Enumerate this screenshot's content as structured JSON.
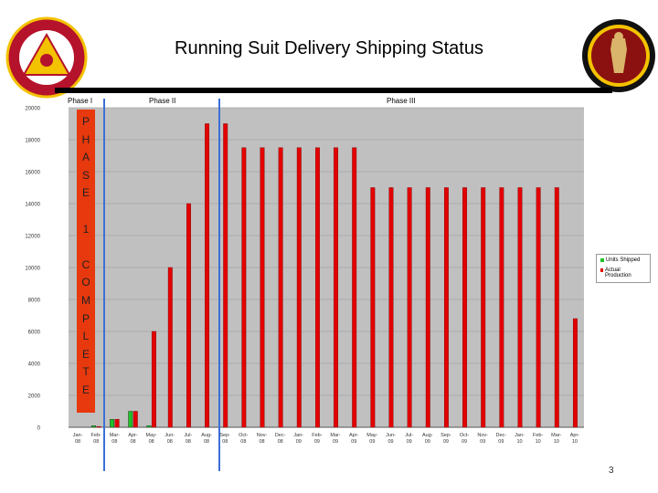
{
  "header": {
    "title": "Running Suit Delivery Shipping Status",
    "page_number": "3"
  },
  "phases": {
    "phase1": "Phase I",
    "phase2": "Phase II",
    "phase3": "Phase III",
    "banner_letters": [
      "P",
      "H",
      "A",
      "S",
      "E",
      "",
      "1",
      "",
      "C",
      "O",
      "M",
      "P",
      "L",
      "E",
      "T",
      "E"
    ]
  },
  "colors": {
    "units_shipped": "#22c12a",
    "actual_production": "#e30000",
    "plot_bg": "#c0c0c0",
    "phase_banner": "#e8380d",
    "phase_divider": "#3b6fd6"
  },
  "chart_data": {
    "type": "bar",
    "title": "",
    "xlabel": "",
    "ylabel": "",
    "ylim": [
      0,
      20000
    ],
    "yticks": [
      0,
      2000,
      4000,
      6000,
      8000,
      10000,
      12000,
      14000,
      16000,
      18000,
      20000
    ],
    "categories": [
      "Jan-08",
      "Feb-08",
      "Mar-08",
      "Apr-08",
      "May-08",
      "Jun-08",
      "Jul-08",
      "Aug-08",
      "Sep-08",
      "Oct-08",
      "Nov-08",
      "Dec-08",
      "Jan-09",
      "Feb-09",
      "Mar-09",
      "Apr-09",
      "May-09",
      "Jun-09",
      "Jul-09",
      "Aug-09",
      "Sep-09",
      "Oct-09",
      "Nov-09",
      "Dec-09",
      "Jan-10",
      "Feb-10",
      "Mar-10",
      "Apr-10"
    ],
    "tick_labels": [
      "Jan-08",
      "Feb-08",
      "Mar-08",
      "Apr-08",
      "May-08",
      "Jun-08",
      "Jul-08",
      "Aug-08",
      "Sep-08",
      "Oct-08",
      "Nov-08",
      "Dec-08",
      "Jan-09",
      "Feb-09",
      "Mar-09",
      "Apr-09",
      "May-09",
      "Jun-09",
      "Jul-09",
      "Aug-09",
      "Sep-09",
      "Oct-09",
      "Nov-09",
      "Dec-09",
      "Jan-10",
      "Feb-10",
      "Mar-10",
      "Apr-10"
    ],
    "series": [
      {
        "name": "Units Shipped",
        "values": [
          0,
          100,
          500,
          1000,
          100,
          0,
          0,
          0,
          0,
          0,
          0,
          0,
          0,
          0,
          0,
          0,
          0,
          0,
          0,
          0,
          0,
          0,
          0,
          0,
          0,
          0,
          0,
          0
        ]
      },
      {
        "name": "Actual Production",
        "values": [
          0,
          50,
          500,
          1000,
          6000,
          10000,
          14000,
          19000,
          19000,
          17500,
          17500,
          17500,
          17500,
          17500,
          17500,
          17500,
          15000,
          15000,
          15000,
          15000,
          15000,
          15000,
          15000,
          15000,
          15000,
          15000,
          15000,
          6800
        ]
      }
    ],
    "grid": true,
    "legend": "right"
  }
}
